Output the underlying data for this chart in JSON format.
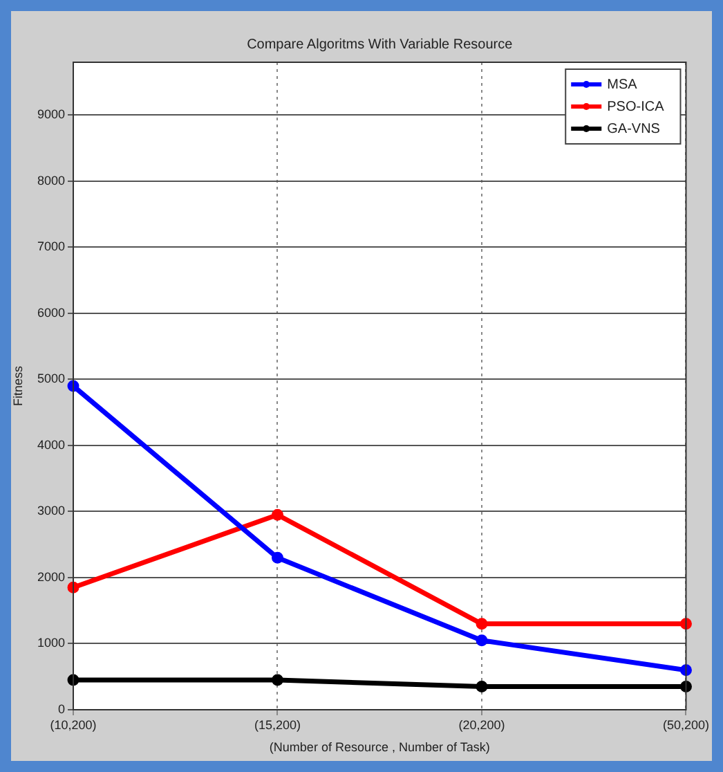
{
  "chart_data": {
    "type": "line",
    "title": "Compare Algoritms With Variable Resource",
    "xlabel": "(Number of Resource , Number of Task)",
    "ylabel": "Fitness",
    "categories": [
      "(10,200)",
      "(15,200)",
      "(20,200)",
      "(50,200)"
    ],
    "series": [
      {
        "name": "MSA",
        "color": "#0000ff",
        "values": [
          4900,
          2300,
          1050,
          600
        ]
      },
      {
        "name": "PSO-ICA",
        "color": "#ff0000",
        "values": [
          1850,
          2950,
          1300,
          1300
        ]
      },
      {
        "name": "GA-VNS",
        "color": "#000000",
        "values": [
          450,
          450,
          350,
          350
        ]
      }
    ],
    "ylim": [
      0,
      9800
    ],
    "yticks": [
      0,
      1000,
      2000,
      3000,
      4000,
      5000,
      6000,
      7000,
      8000,
      9000
    ],
    "grid": true,
    "legend": "top right",
    "marker": "circle",
    "line_style": "solid"
  }
}
